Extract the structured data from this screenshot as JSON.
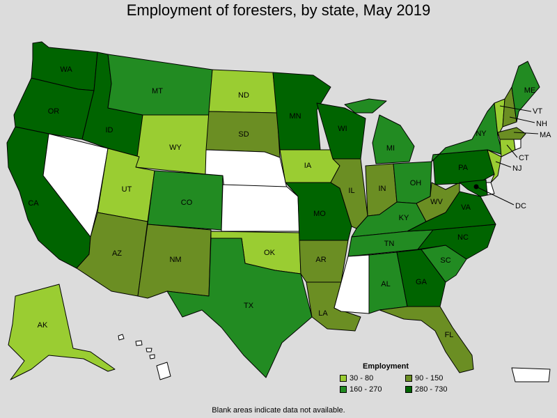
{
  "title": "Employment of foresters, by state, May 2019",
  "legend": {
    "title": "Employment",
    "bins": [
      {
        "label": "30 - 80",
        "color": "#9acd32"
      },
      {
        "label": "90 - 150",
        "color": "#6b8e23"
      },
      {
        "label": "160 - 270",
        "color": "#228b22"
      },
      {
        "label": "280 - 730",
        "color": "#006400"
      }
    ]
  },
  "colors": {
    "no_data": "#ffffff",
    "background": "#dcdcdc"
  },
  "footnote": "Blank areas indicate data not available.",
  "states": {
    "WA": {
      "label": "WA",
      "bin": 3
    },
    "OR": {
      "label": "OR",
      "bin": 3
    },
    "CA": {
      "label": "CA",
      "bin": 3
    },
    "NV": {
      "label": "",
      "bin": -1
    },
    "ID": {
      "label": "ID",
      "bin": 3
    },
    "MT": {
      "label": "MT",
      "bin": 2
    },
    "WY": {
      "label": "WY",
      "bin": 0
    },
    "UT": {
      "label": "UT",
      "bin": 0
    },
    "AZ": {
      "label": "AZ",
      "bin": 1
    },
    "CO": {
      "label": "CO",
      "bin": 2
    },
    "NM": {
      "label": "NM",
      "bin": 1
    },
    "ND": {
      "label": "ND",
      "bin": 0
    },
    "SD": {
      "label": "SD",
      "bin": 1
    },
    "NE": {
      "label": "",
      "bin": -1
    },
    "KS": {
      "label": "",
      "bin": -1
    },
    "OK": {
      "label": "OK",
      "bin": 0
    },
    "TX": {
      "label": "TX",
      "bin": 2
    },
    "MN": {
      "label": "MN",
      "bin": 3
    },
    "IA": {
      "label": "IA",
      "bin": 0
    },
    "MO": {
      "label": "MO",
      "bin": 3
    },
    "AR": {
      "label": "AR",
      "bin": 1
    },
    "LA": {
      "label": "LA",
      "bin": 1
    },
    "WI": {
      "label": "WI",
      "bin": 3
    },
    "IL": {
      "label": "IL",
      "bin": 1
    },
    "MI": {
      "label": "MI",
      "bin": 2
    },
    "IN": {
      "label": "IN",
      "bin": 1
    },
    "OH": {
      "label": "OH",
      "bin": 2
    },
    "KY": {
      "label": "KY",
      "bin": 2
    },
    "TN": {
      "label": "TN",
      "bin": 2
    },
    "MS": {
      "label": "",
      "bin": -1
    },
    "AL": {
      "label": "AL",
      "bin": 2
    },
    "GA": {
      "label": "GA",
      "bin": 3
    },
    "FL": {
      "label": "FL",
      "bin": 1
    },
    "SC": {
      "label": "SC",
      "bin": 2
    },
    "NC": {
      "label": "NC",
      "bin": 3
    },
    "VA": {
      "label": "VA",
      "bin": 3
    },
    "WV": {
      "label": "WV",
      "bin": 1
    },
    "PA": {
      "label": "PA",
      "bin": 3
    },
    "NY": {
      "label": "NY",
      "bin": 2
    },
    "ME": {
      "label": "ME",
      "bin": 2
    },
    "VT": {
      "label": "VT",
      "bin": 0
    },
    "NH": {
      "label": "NH",
      "bin": 1
    },
    "MA": {
      "label": "MA",
      "bin": 1
    },
    "CT": {
      "label": "CT",
      "bin": 0
    },
    "RI": {
      "label": "",
      "bin": -1
    },
    "NJ": {
      "label": "NJ",
      "bin": 0
    },
    "DE": {
      "label": "",
      "bin": -1
    },
    "MD": {
      "label": "",
      "bin": 3
    },
    "DC": {
      "label": "DC",
      "bin": -1
    },
    "AK": {
      "label": "AK",
      "bin": 0
    },
    "HI": {
      "label": "",
      "bin": -1
    },
    "PR": {
      "label": "",
      "bin": -1
    }
  }
}
